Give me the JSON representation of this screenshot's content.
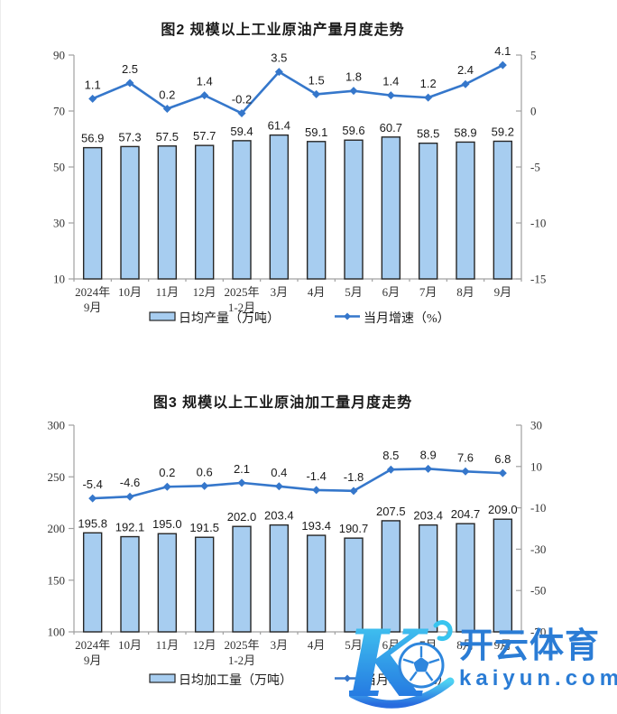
{
  "page": {
    "background": "#ffffff"
  },
  "style": {
    "bar_fill": "#a7cdf0",
    "bar_border": "#262626",
    "line_color": "#3577cb",
    "axis_color": "#a0a0a0",
    "label_color": "#1a1a1a"
  },
  "chart_data": [
    {
      "type": "bar+line",
      "title": "图2 规模以上工业原油产量月度走势",
      "categories": [
        "2024年\n9月",
        "10月",
        "11月",
        "12月",
        "2025年\n1-2月",
        "3月",
        "4月",
        "5月",
        "6月",
        "7月",
        "8月",
        "9月"
      ],
      "series": [
        {
          "name": "日均产量（万吨）",
          "type": "bar",
          "axis": "left",
          "values": [
            56.9,
            57.3,
            57.5,
            57.7,
            59.4,
            61.4,
            59.1,
            59.6,
            60.7,
            58.5,
            58.9,
            59.2
          ]
        },
        {
          "name": "当月增速（%）",
          "type": "line",
          "axis": "right",
          "values": [
            1.1,
            2.5,
            0.2,
            1.4,
            -0.2,
            3.5,
            1.5,
            1.8,
            1.4,
            1.2,
            2.4,
            4.1
          ]
        }
      ],
      "left_axis": {
        "min": 10,
        "max": 90,
        "ticks": [
          10,
          30,
          50,
          70,
          90
        ]
      },
      "right_axis": {
        "min": -15,
        "max": 5,
        "ticks": [
          -15,
          -10,
          -5,
          0,
          5
        ]
      },
      "grid": false,
      "legend_position": "bottom"
    },
    {
      "type": "bar+line",
      "title": "图3 规模以上工业原油加工量月度走势",
      "categories": [
        "2024年\n9月",
        "10月",
        "11月",
        "12月",
        "2025年\n1-2月",
        "3月",
        "4月",
        "5月",
        "6月",
        "7月",
        "8月",
        "9月"
      ],
      "series": [
        {
          "name": "日均加工量（万吨）",
          "type": "bar",
          "axis": "left",
          "values": [
            195.8,
            192.1,
            195.0,
            191.5,
            202.0,
            203.4,
            193.4,
            190.7,
            207.5,
            203.4,
            204.7,
            209.0
          ]
        },
        {
          "name": "当月增速（%）",
          "type": "line",
          "axis": "right",
          "values": [
            -5.4,
            -4.6,
            0.2,
            0.6,
            2.1,
            0.4,
            -1.4,
            -1.8,
            8.5,
            8.9,
            7.6,
            6.8
          ]
        }
      ],
      "left_axis": {
        "min": 100,
        "max": 300,
        "ticks": [
          100,
          150,
          200,
          250,
          300
        ]
      },
      "right_axis": {
        "min": -70,
        "max": 30,
        "ticks": [
          -70,
          -50,
          -30,
          -10,
          10,
          30
        ]
      },
      "grid": false,
      "legend_position": "bottom"
    }
  ],
  "watermark": {
    "brand_cn": "开云体育",
    "brand_url": "kaiyun.com",
    "logo_letter": "K",
    "brand_color": "#2a7cd5",
    "logo_gradient_top": "#45d0f2",
    "logo_gradient_bottom": "#1d64dd"
  }
}
